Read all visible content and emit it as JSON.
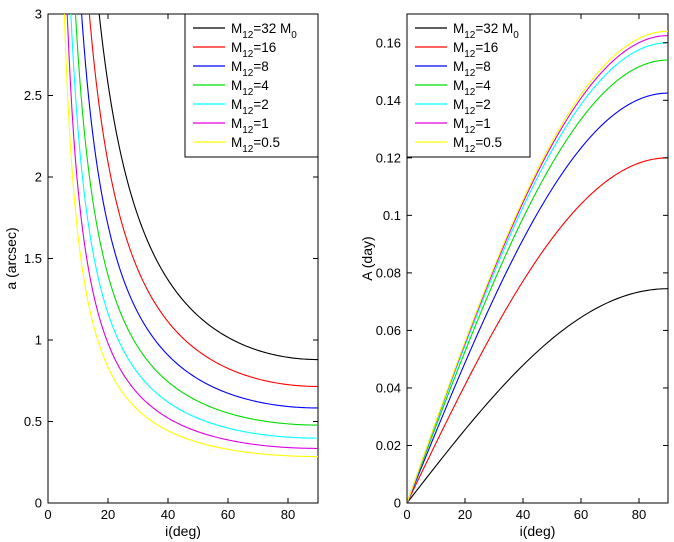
{
  "chart_data": [
    {
      "type": "line",
      "xlabel": "i(deg)",
      "ylabel": "a (arcsec)",
      "xlim": [
        0,
        90
      ],
      "ylim": [
        0,
        3
      ],
      "xticks": [
        0,
        20,
        40,
        60,
        80
      ],
      "yticks": [
        0,
        0.5,
        1,
        1.5,
        2,
        2.5,
        3
      ],
      "xtick_labels": [
        "0",
        "20",
        "40",
        "60",
        "80"
      ],
      "ytick_labels": [
        "0",
        "0.5",
        "1",
        "1.5",
        "2",
        "2.5",
        "3"
      ],
      "legend_position": "top-right",
      "series": [
        {
          "name": "M12=32 M0",
          "label_main": "M",
          "label_sub": "12",
          "label_rest": "=32 M",
          "label_sub2": "0",
          "color": "#000000",
          "asymptote": 0.88
        },
        {
          "name": "M12=16",
          "label_main": "M",
          "label_sub": "12",
          "label_rest": "=16",
          "label_sub2": "",
          "color": "#ff0000",
          "asymptote": 0.715
        },
        {
          "name": "M12=8",
          "label_main": "M",
          "label_sub": "12",
          "label_rest": "=8",
          "label_sub2": "",
          "color": "#0000ff",
          "asymptote": 0.583
        },
        {
          "name": "M12=4",
          "label_main": "M",
          "label_sub": "12",
          "label_rest": "=4",
          "label_sub2": "",
          "color": "#00dd00",
          "asymptote": 0.478
        },
        {
          "name": "M12=2",
          "label_main": "M",
          "label_sub": "12",
          "label_rest": "=2",
          "label_sub2": "",
          "color": "#00ffff",
          "asymptote": 0.398
        },
        {
          "name": "M12=1",
          "label_main": "M",
          "label_sub": "12",
          "label_rest": "=1",
          "label_sub2": "",
          "color": "#dd00dd",
          "asymptote": 0.335
        },
        {
          "name": "M12=0.5",
          "label_main": "M",
          "label_sub": "12",
          "label_rest": "=0.5",
          "label_sub2": "",
          "color": "#ffff00",
          "asymptote": 0.285
        }
      ]
    },
    {
      "type": "line",
      "xlabel": "i(deg)",
      "ylabel": "A (day)",
      "xlim": [
        0,
        90
      ],
      "ylim": [
        0,
        0.17
      ],
      "xticks": [
        0,
        20,
        40,
        60,
        80
      ],
      "yticks": [
        0,
        0.02,
        0.04,
        0.06,
        0.08,
        0.1,
        0.12,
        0.14,
        0.16
      ],
      "xtick_labels": [
        "0",
        "20",
        "40",
        "60",
        "80"
      ],
      "ytick_labels": [
        "0",
        "0.02",
        "0.04",
        "0.06",
        "0.08",
        "0.1",
        "0.12",
        "0.14",
        "0.16"
      ],
      "legend_position": "top-left",
      "series": [
        {
          "name": "M12=32 M0",
          "label_main": "M",
          "label_sub": "12",
          "label_rest": "=32 M",
          "label_sub2": "0",
          "color": "#000000",
          "peak_at_90": 0.0745
        },
        {
          "name": "M12=16",
          "label_main": "M",
          "label_sub": "12",
          "label_rest": "=16",
          "label_sub2": "",
          "color": "#ff0000",
          "peak_at_90": 0.12
        },
        {
          "name": "M12=8",
          "label_main": "M",
          "label_sub": "12",
          "label_rest": "=8",
          "label_sub2": "",
          "color": "#0000ff",
          "peak_at_90": 0.1425
        },
        {
          "name": "M12=4",
          "label_main": "M",
          "label_sub": "12",
          "label_rest": "=4",
          "label_sub2": "",
          "color": "#00dd00",
          "peak_at_90": 0.154
        },
        {
          "name": "M12=2",
          "label_main": "M",
          "label_sub": "12",
          "label_rest": "=2",
          "label_sub2": "",
          "color": "#00ffff",
          "peak_at_90": 0.16
        },
        {
          "name": "M12=1",
          "label_main": "M",
          "label_sub": "12",
          "label_rest": "=1",
          "label_sub2": "",
          "color": "#dd00dd",
          "peak_at_90": 0.1625
        },
        {
          "name": "M12=0.5",
          "label_main": "M",
          "label_sub": "12",
          "label_rest": "=0.5",
          "label_sub2": "",
          "color": "#ffff00",
          "peak_at_90": 0.164
        }
      ]
    }
  ]
}
